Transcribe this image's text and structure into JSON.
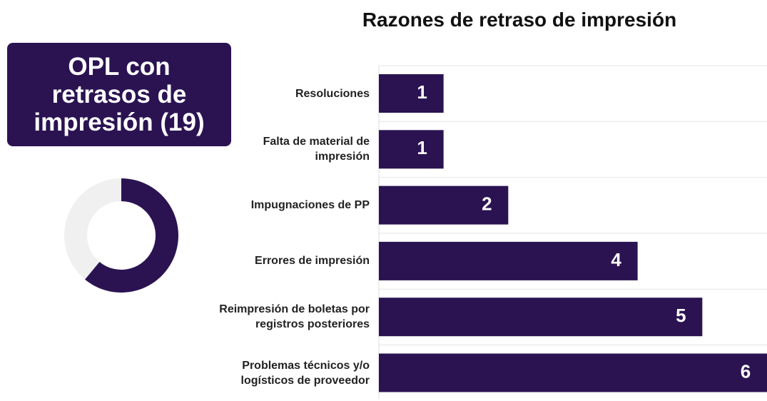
{
  "summary": {
    "title": "OPL con retrasos de impresión (19)"
  },
  "donut": {
    "type": "pie",
    "values": [
      61,
      39
    ],
    "colors": [
      "#2b1352",
      "#f0f0f0"
    ]
  },
  "chart_data": {
    "type": "barh",
    "title": "Razones de retraso de impresión",
    "categories": [
      "Resoluciones",
      "Falta de material de impresión",
      "Impugnaciones de PP",
      "Errores de impresión",
      "Reimpresión de boletas por registros posteriores",
      "Problemas técnicos y/o logísticos de proveedor"
    ],
    "values": [
      1,
      1,
      2,
      4,
      5,
      6
    ],
    "color": "#2b1352",
    "xlim": [
      0,
      6
    ],
    "grid": true
  }
}
